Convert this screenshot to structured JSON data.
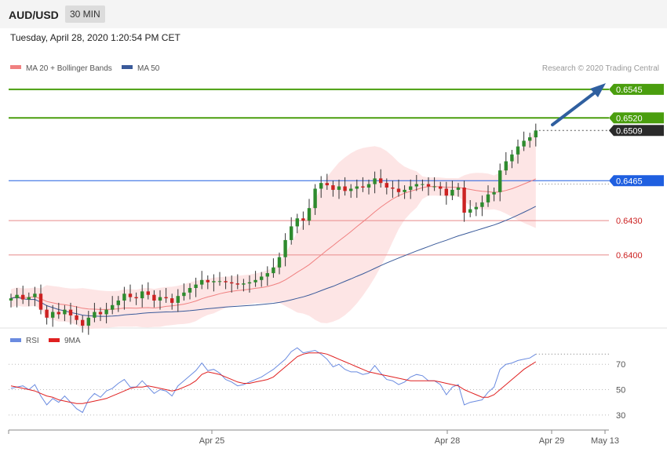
{
  "header": {
    "symbol": "AUD/USD",
    "timeframe": "30 MIN",
    "timestamp": "Tuesday, April 28, 2020 1:20:54 PM CET"
  },
  "legend": {
    "ma20_bb": "MA 20 + Bollinger Bands",
    "ma50": "MA 50",
    "credit": "Research © 2020 Trading Central",
    "rsi": "RSI",
    "ma9": "9MA"
  },
  "colors": {
    "up": "#2e8b2e",
    "down": "#cc2222",
    "ma20": "#f08080",
    "ma50": "#3a5a9a",
    "bands": "#fde0e0",
    "green_level": "#4a9e0e",
    "blue_level": "#1f5fe0",
    "red_level": "#e88a8a",
    "rsi": "#6a8be0",
    "rsi_ma": "#e02020"
  },
  "chart_data": [
    {
      "type": "candlestick",
      "y_range": [
        0.6338,
        0.6558
      ],
      "x_labels": [
        "Apr 25",
        "Apr 28",
        "Apr 29",
        "May 13"
      ],
      "levels": [
        {
          "value": 0.6545,
          "label": "0.6545",
          "kind": "resistance"
        },
        {
          "value": 0.652,
          "label": "0.6520",
          "kind": "resistance"
        },
        {
          "value": 0.6509,
          "label": "0.6509",
          "kind": "last"
        },
        {
          "value": 0.6465,
          "label": "0.6465",
          "kind": "pivot"
        },
        {
          "value": 0.643,
          "label": "0.6430",
          "kind": "support"
        },
        {
          "value": 0.64,
          "label": "0.6400",
          "kind": "support"
        }
      ],
      "closes": [
        0.6362,
        0.6365,
        0.6361,
        0.6363,
        0.6366,
        0.6352,
        0.6345,
        0.635,
        0.6348,
        0.6352,
        0.6347,
        0.6343,
        0.6338,
        0.6345,
        0.635,
        0.6348,
        0.6352,
        0.6356,
        0.636,
        0.6366,
        0.6363,
        0.6362,
        0.6368,
        0.6365,
        0.636,
        0.6363,
        0.6362,
        0.6358,
        0.6364,
        0.6367,
        0.6371,
        0.6374,
        0.6378,
        0.6376,
        0.6377,
        0.6377,
        0.6376,
        0.6375,
        0.6374,
        0.6375,
        0.6376,
        0.6378,
        0.6381,
        0.6384,
        0.6389,
        0.6398,
        0.6413,
        0.6425,
        0.6432,
        0.643,
        0.6441,
        0.6458,
        0.6463,
        0.6461,
        0.6457,
        0.646,
        0.6456,
        0.6458,
        0.646,
        0.6459,
        0.6462,
        0.6467,
        0.6463,
        0.6459,
        0.6458,
        0.6455,
        0.6457,
        0.646,
        0.6462,
        0.6462,
        0.646,
        0.646,
        0.6458,
        0.6452,
        0.6457,
        0.6459,
        0.6437,
        0.644,
        0.6442,
        0.6446,
        0.6453,
        0.6455,
        0.6474,
        0.6482,
        0.6488,
        0.6495,
        0.65,
        0.6503,
        0.6509
      ]
    },
    {
      "type": "line",
      "name": "RSI",
      "y_range": [
        20,
        85
      ],
      "y_ticks": [
        70,
        50,
        30
      ],
      "rsi": [
        51,
        52,
        53,
        50,
        54,
        45,
        38,
        43,
        40,
        45,
        40,
        35,
        32,
        42,
        47,
        44,
        49,
        51,
        55,
        58,
        52,
        52,
        57,
        52,
        47,
        50,
        49,
        45,
        53,
        57,
        61,
        65,
        71,
        65,
        66,
        63,
        58,
        56,
        53,
        54,
        56,
        58,
        60,
        63,
        66,
        70,
        74,
        80,
        83,
        79,
        80,
        81,
        78,
        74,
        68,
        70,
        66,
        64,
        64,
        62,
        63,
        69,
        63,
        58,
        57,
        54,
        56,
        60,
        62,
        61,
        57,
        57,
        54,
        46,
        52,
        54,
        38,
        40,
        41,
        42,
        48,
        52,
        66,
        70,
        71,
        73,
        74,
        75,
        78
      ],
      "rsi_ma": [
        53,
        52,
        51,
        50,
        49,
        47,
        45,
        44,
        42,
        41,
        40,
        39,
        39,
        40,
        41,
        42,
        43,
        45,
        47,
        49,
        51,
        52,
        52,
        53,
        52,
        51,
        50,
        49,
        50,
        52,
        54,
        57,
        62,
        64,
        63,
        62,
        60,
        58,
        56,
        55,
        55,
        56,
        57,
        58,
        60,
        64,
        68,
        72,
        76,
        78,
        79,
        79,
        79,
        78,
        76,
        74,
        72,
        70,
        68,
        66,
        64,
        63,
        62,
        61,
        60,
        59,
        58,
        57,
        57,
        57,
        57,
        57,
        56,
        55,
        54,
        53,
        50,
        48,
        46,
        44,
        44,
        46,
        50,
        54,
        58,
        62,
        66,
        69,
        72
      ]
    }
  ]
}
